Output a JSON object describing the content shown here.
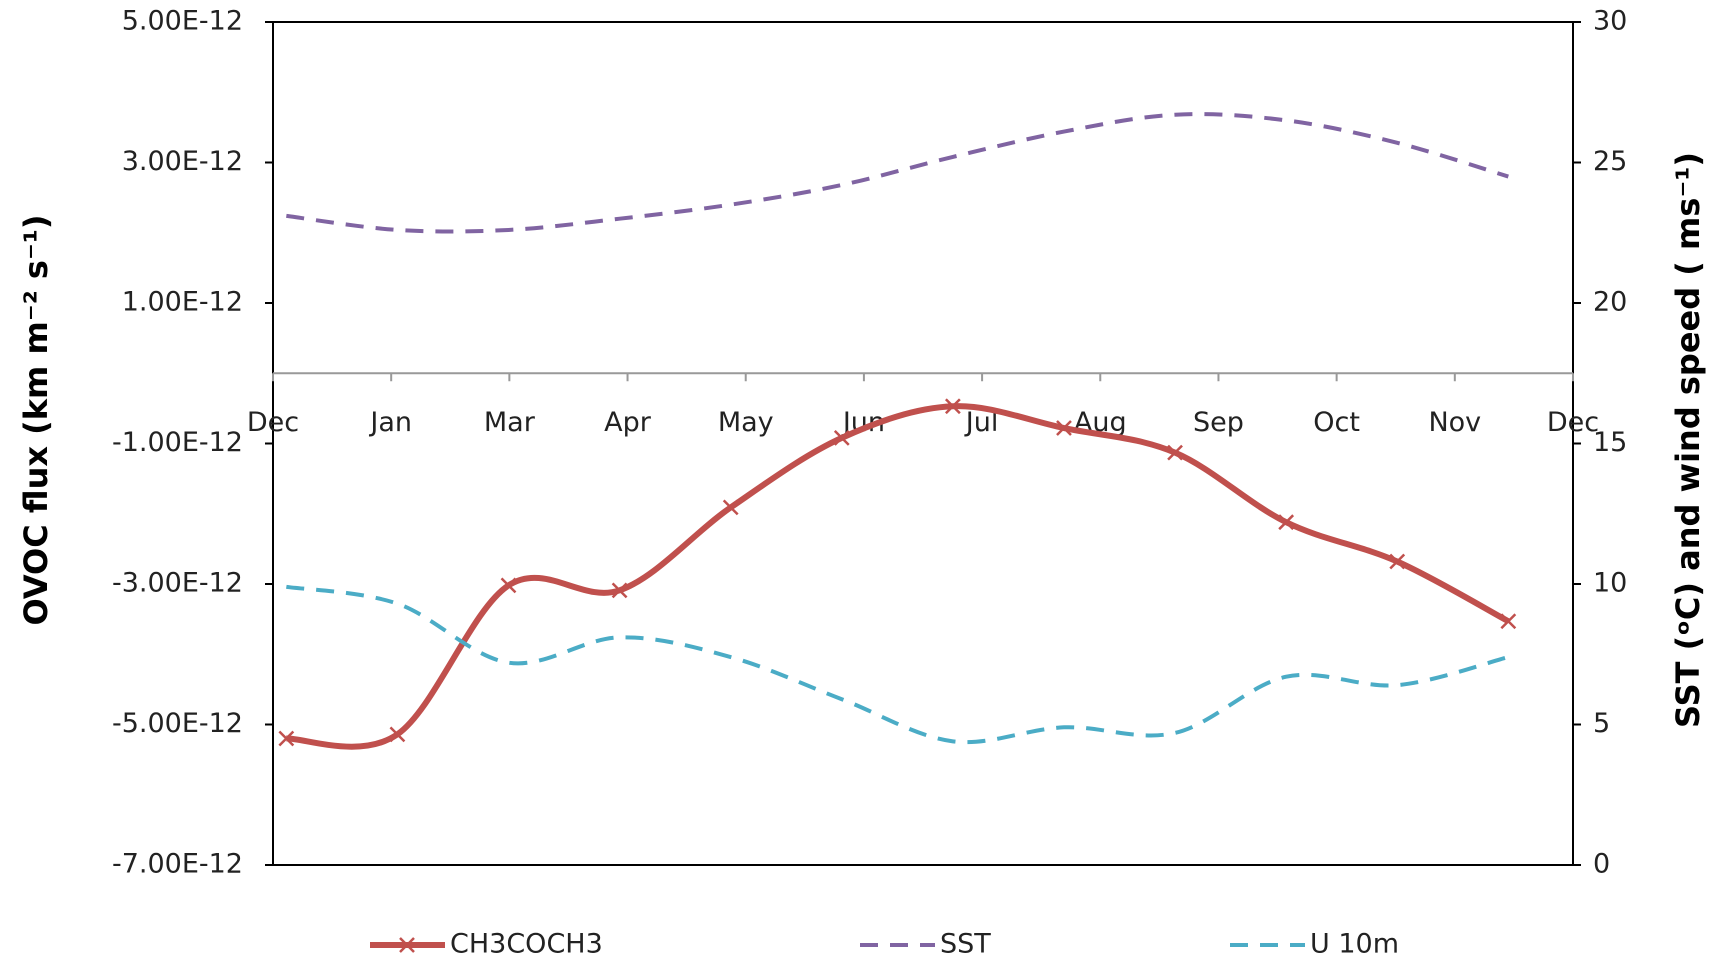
{
  "chart_data": {
    "type": "line",
    "y_label": "OVOC flux (km m⁻² s⁻¹)",
    "y2_label": "SST (ᵒC) and wind speed ( ms⁻¹)",
    "categories": [
      "Dec",
      "Jan",
      "Mar",
      "Apr",
      "May",
      "Jun",
      "Jul",
      "Aug",
      "Sep",
      "Oct",
      "Nov",
      "Dec"
    ],
    "series": [
      {
        "name": "CH3COCH3",
        "color": "#c0504d",
        "marker": "x",
        "values": [
          -5.2e-12,
          -5.14e-12,
          -3.02e-12,
          -3.09e-12,
          -1.91e-12,
          -9.2e-13,
          -4.7e-13,
          -7.8e-13,
          -1.13e-12,
          -2.12e-12,
          -2.68e-12,
          -3.53e-12
        ]
      },
      {
        "name": "SST",
        "color": "#8064a2",
        "dashed": true,
        "axis": "y2",
        "values": [
          23.1,
          22.6,
          22.6,
          23.0,
          23.5,
          24.2,
          25.2,
          26.1,
          26.7,
          26.5,
          25.7,
          24.5
        ]
      },
      {
        "name": "U 10m",
        "color": "#4bacc6",
        "dashed": true,
        "axis": "y2",
        "values": [
          9.9,
          9.3,
          7.2,
          8.1,
          7.4,
          5.9,
          4.4,
          4.9,
          4.7,
          6.7,
          6.4,
          7.4
        ]
      }
    ],
    "ylim": [
      -7e-12,
      5e-12
    ],
    "yticks": [
      {
        "value": -7e-12,
        "label": "-7.00E-12"
      },
      {
        "value": -5e-12,
        "label": "-5.00E-12"
      },
      {
        "value": -3e-12,
        "label": "-3.00E-12"
      },
      {
        "value": -1e-12,
        "label": "-1.00E-12"
      },
      {
        "value": 1e-12,
        "label": "1.00E-12"
      },
      {
        "value": 3e-12,
        "label": "3.00E-12"
      },
      {
        "value": 5e-12,
        "label": "5.00E-12"
      }
    ],
    "y2lim": [
      0,
      30
    ],
    "y2ticks": [
      0,
      5,
      10,
      15,
      20,
      25,
      30
    ],
    "grid": false,
    "legend": "bottom"
  }
}
